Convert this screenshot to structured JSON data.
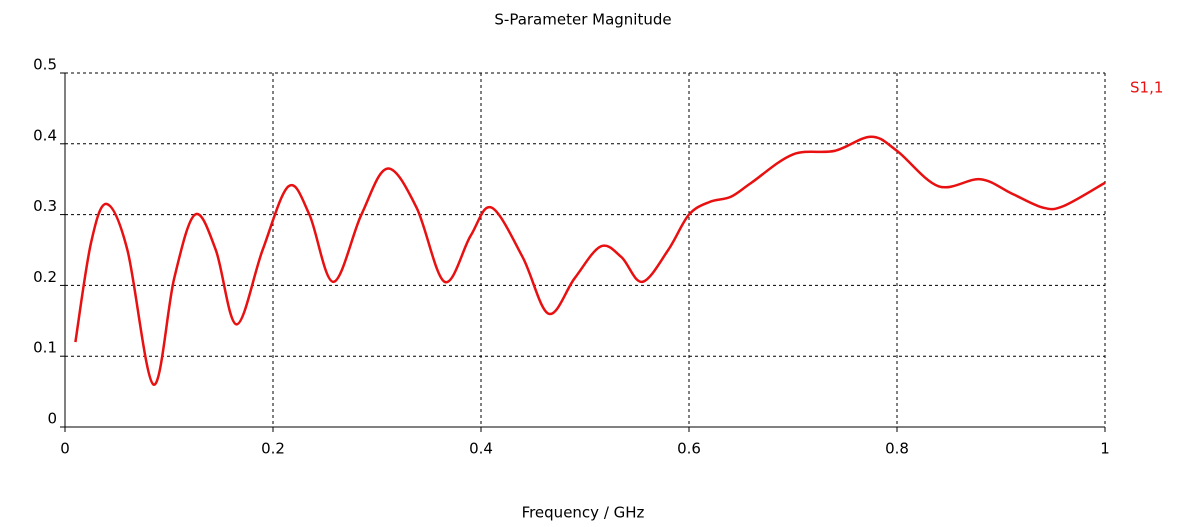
{
  "chart_data": {
    "type": "line",
    "title": "S-Parameter Magnitude",
    "x_label": "Frequency / GHz",
    "x": [
      0.01,
      0.025,
      0.04,
      0.06,
      0.085,
      0.105,
      0.125,
      0.145,
      0.165,
      0.19,
      0.215,
      0.235,
      0.258,
      0.285,
      0.31,
      0.338,
      0.365,
      0.39,
      0.41,
      0.44,
      0.465,
      0.49,
      0.515,
      0.535,
      0.555,
      0.58,
      0.6,
      0.62,
      0.64,
      0.66,
      0.7,
      0.74,
      0.775,
      0.8,
      0.84,
      0.88,
      0.91,
      0.94,
      0.96,
      1.0
    ],
    "series": [
      {
        "name": "S1,1",
        "color": "#e81010",
        "values": [
          0.12,
          0.26,
          0.315,
          0.25,
          0.06,
          0.21,
          0.3,
          0.25,
          0.145,
          0.25,
          0.34,
          0.3,
          0.205,
          0.3,
          0.365,
          0.31,
          0.205,
          0.27,
          0.31,
          0.24,
          0.16,
          0.21,
          0.255,
          0.24,
          0.205,
          0.25,
          0.3,
          0.318,
          0.325,
          0.345,
          0.385,
          0.39,
          0.41,
          0.39,
          0.34,
          0.35,
          0.33,
          0.31,
          0.312,
          0.345
        ]
      }
    ],
    "xlim": [
      0,
      1
    ],
    "xticks": [
      0,
      0.2,
      0.4,
      0.6,
      0.8,
      1
    ],
    "ylim": [
      0,
      0.5
    ],
    "yticks": [
      0,
      0.1,
      0.2,
      0.3,
      0.4,
      0.5
    ],
    "grid": true
  }
}
